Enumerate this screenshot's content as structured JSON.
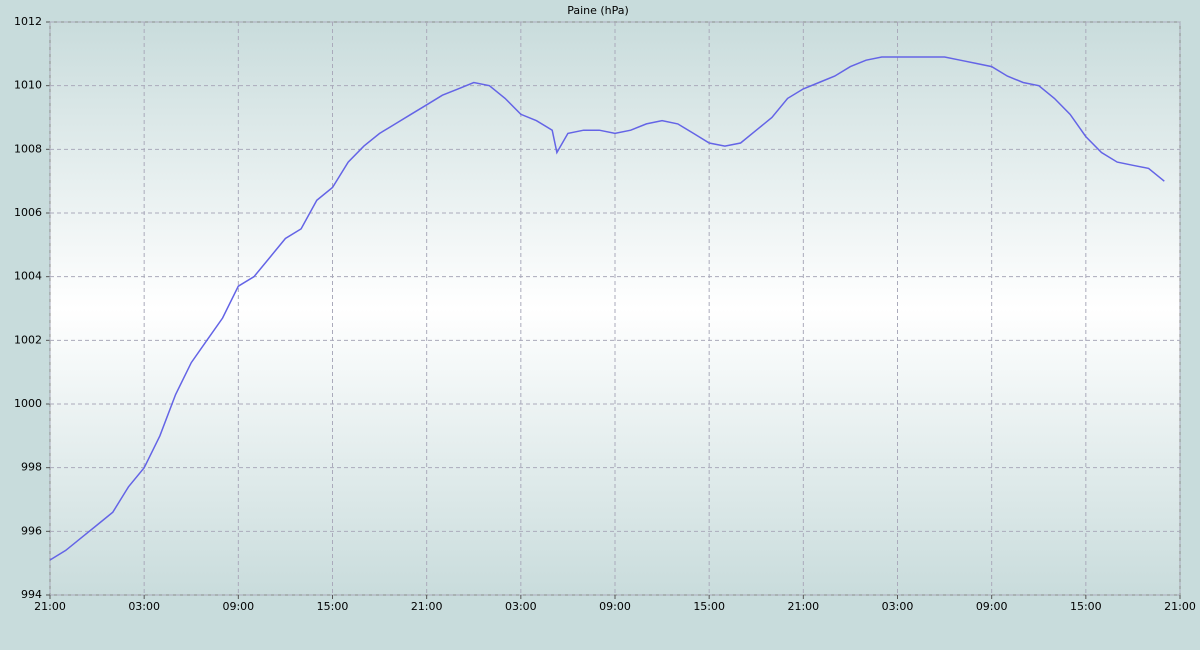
{
  "chart_data": {
    "type": "line",
    "title": "Paine (hPa)",
    "x": [
      0,
      1,
      2,
      3,
      4,
      5,
      6,
      7,
      8,
      9,
      10,
      11,
      12,
      13,
      14,
      15,
      16,
      17,
      18,
      19,
      20,
      21,
      22,
      23,
      24,
      25,
      26,
      27,
      28,
      29,
      30,
      31,
      32,
      32.3,
      33,
      34,
      35,
      36,
      37,
      38,
      39,
      40,
      41,
      42,
      43,
      44,
      45,
      46,
      47,
      48,
      49,
      50,
      51,
      52,
      53,
      54,
      55,
      56,
      57,
      58,
      59,
      60,
      61,
      62,
      63,
      64,
      65,
      66,
      67,
      68,
      69,
      70,
      71
    ],
    "series": [
      {
        "color": "#6464e6",
        "values": [
          995.1,
          995.4,
          995.8,
          996.2,
          996.6,
          997.4,
          998.0,
          999.0,
          1000.3,
          1001.3,
          1002.0,
          1002.7,
          1003.7,
          1004.0,
          1004.6,
          1005.2,
          1005.5,
          1006.4,
          1006.8,
          1007.6,
          1008.1,
          1008.5,
          1008.8,
          1009.1,
          1009.4,
          1009.7,
          1009.9,
          1010.1,
          1010.0,
          1009.6,
          1009.1,
          1008.9,
          1008.6,
          1007.9,
          1008.5,
          1008.6,
          1008.6,
          1008.5,
          1008.6,
          1008.8,
          1008.9,
          1008.8,
          1008.5,
          1008.2,
          1008.1,
          1008.2,
          1008.6,
          1009.0,
          1009.6,
          1009.9,
          1010.1,
          1010.3,
          1010.6,
          1010.8,
          1010.9,
          1010.9,
          1010.9,
          1010.9,
          1010.9,
          1010.8,
          1010.7,
          1010.6,
          1010.3,
          1010.1,
          1010.0,
          1009.6,
          1009.1,
          1008.4,
          1007.9,
          1007.6,
          1007.5,
          1007.4,
          1007.0
        ]
      }
    ],
    "xlim": [
      0,
      72
    ],
    "xticks": [
      {
        "value": 0,
        "label": "21:00"
      },
      {
        "value": 6,
        "label": "03:00"
      },
      {
        "value": 12,
        "label": "09:00"
      },
      {
        "value": 18,
        "label": "15:00"
      },
      {
        "value": 24,
        "label": "21:00"
      },
      {
        "value": 30,
        "label": "03:00"
      },
      {
        "value": 36,
        "label": "09:00"
      },
      {
        "value": 42,
        "label": "15:00"
      },
      {
        "value": 48,
        "label": "21:00"
      },
      {
        "value": 54,
        "label": "03:00"
      },
      {
        "value": 60,
        "label": "09:00"
      },
      {
        "value": 66,
        "label": "15:00"
      },
      {
        "value": 72,
        "label": "21:00"
      }
    ],
    "ylim": [
      994,
      1012
    ],
    "yticks": [
      994,
      996,
      998,
      1000,
      1002,
      1004,
      1006,
      1008,
      1010,
      1012
    ],
    "grid": true
  }
}
